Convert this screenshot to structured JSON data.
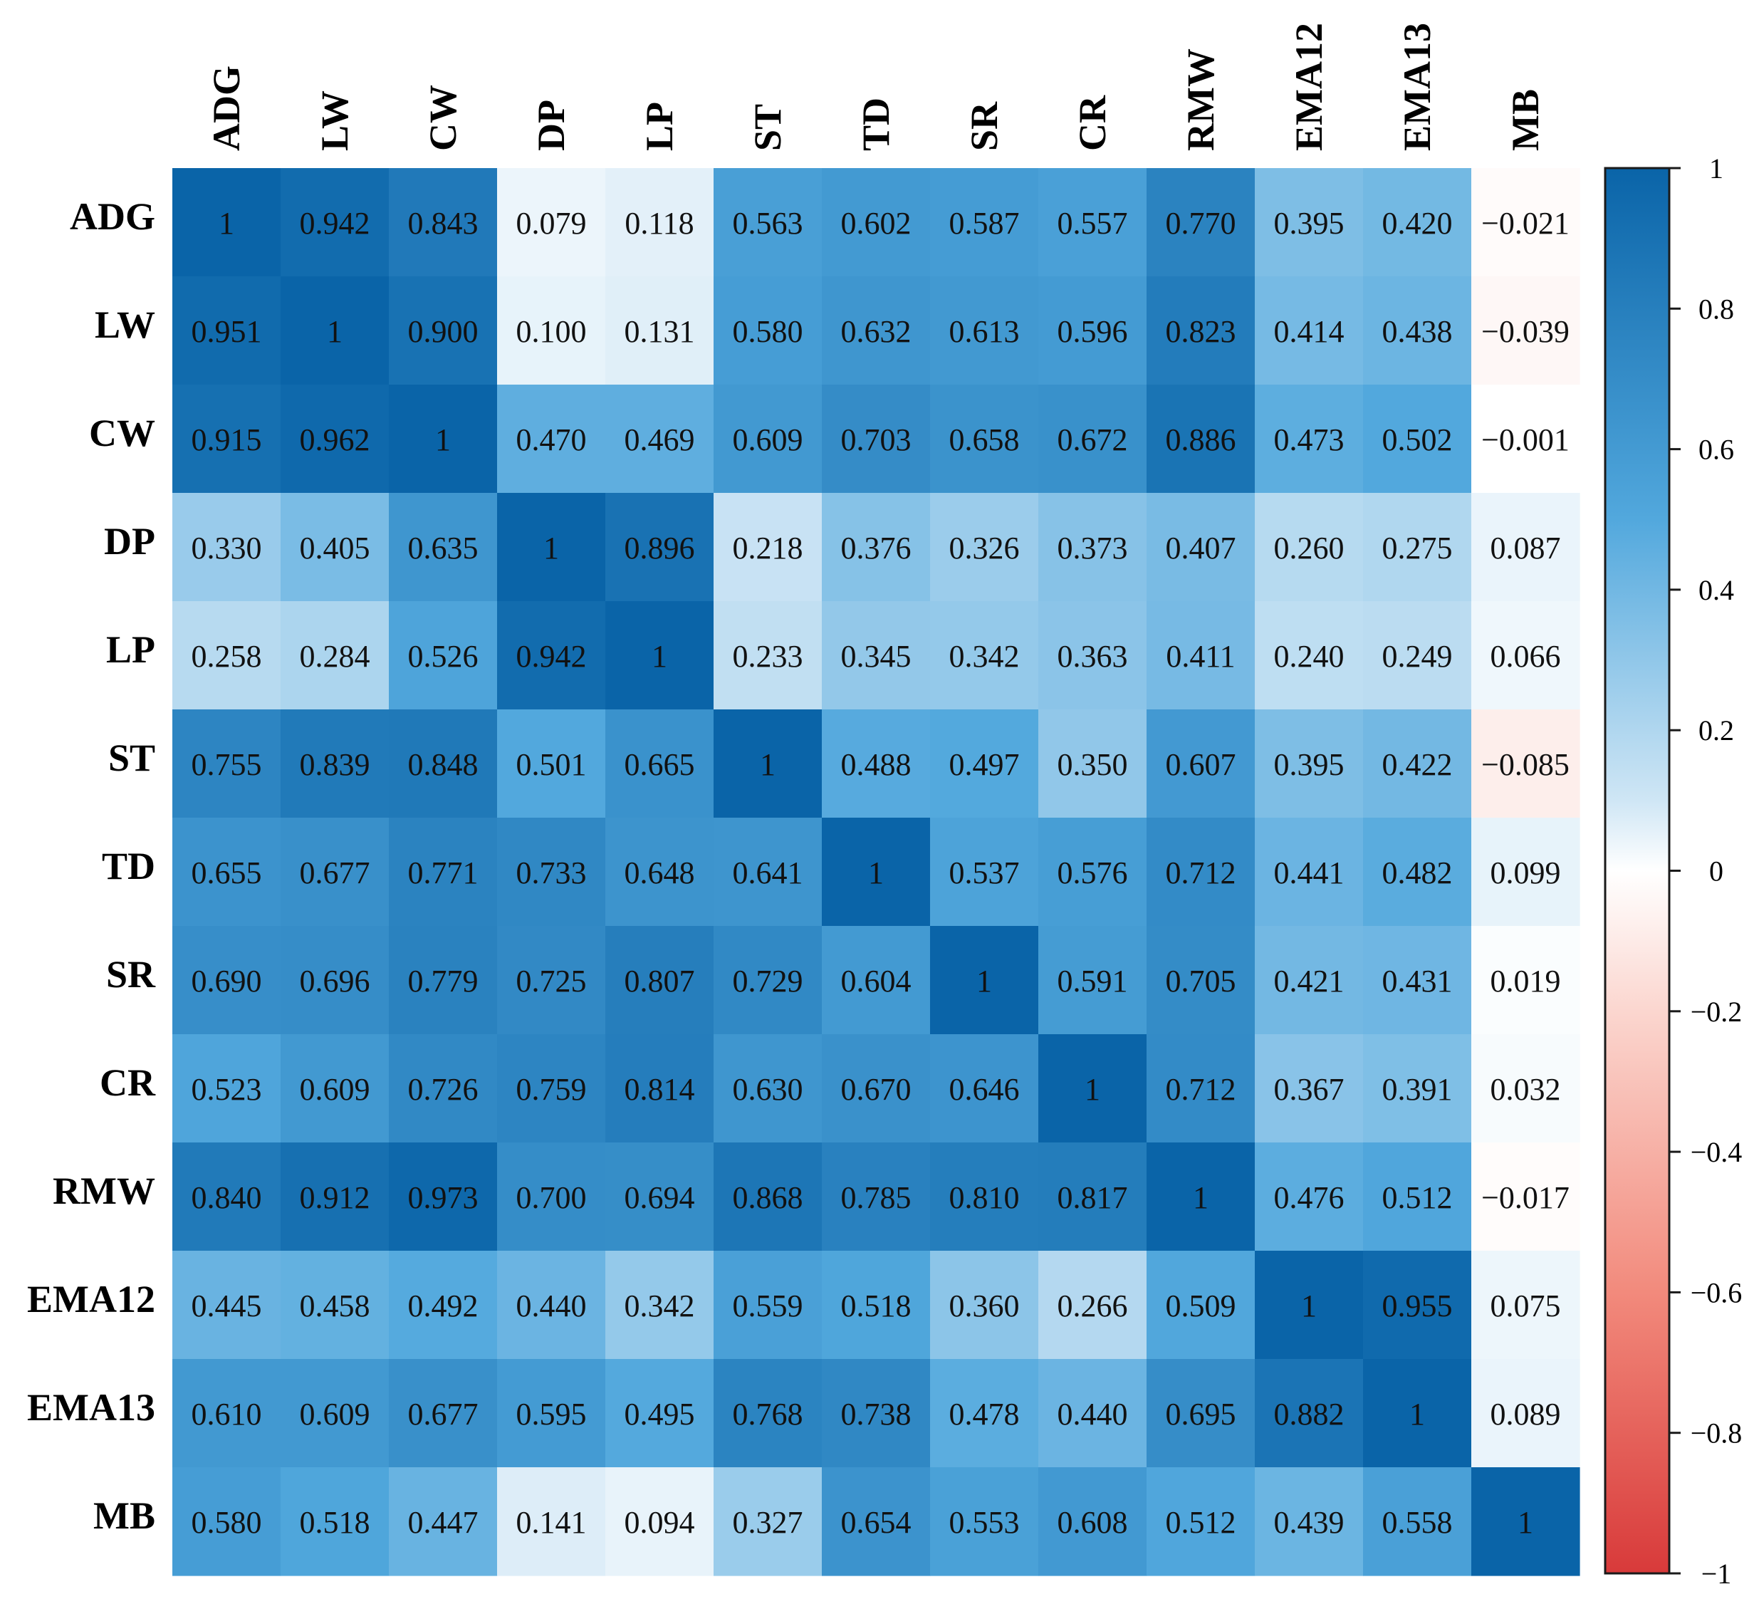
{
  "chart_data": {
    "type": "heatmap",
    "title": "",
    "variables": [
      "ADG",
      "LW",
      "CW",
      "DP",
      "LP",
      "ST",
      "TD",
      "SR",
      "CR",
      "RMW",
      "EMA12",
      "EMA13",
      "MB"
    ],
    "matrix": [
      [
        "1",
        "0.942",
        "0.843",
        "0.079",
        "0.118",
        "0.563",
        "0.602",
        "0.587",
        "0.557",
        "0.770",
        "0.395",
        "0.420",
        "−0.021"
      ],
      [
        "0.951",
        "1",
        "0.900",
        "0.100",
        "0.131",
        "0.580",
        "0.632",
        "0.613",
        "0.596",
        "0.823",
        "0.414",
        "0.438",
        "−0.039"
      ],
      [
        "0.915",
        "0.962",
        "1",
        "0.470",
        "0.469",
        "0.609",
        "0.703",
        "0.658",
        "0.672",
        "0.886",
        "0.473",
        "0.502",
        "−0.001"
      ],
      [
        "0.330",
        "0.405",
        "0.635",
        "1",
        "0.896",
        "0.218",
        "0.376",
        "0.326",
        "0.373",
        "0.407",
        "0.260",
        "0.275",
        "0.087"
      ],
      [
        "0.258",
        "0.284",
        "0.526",
        "0.942",
        "1",
        "0.233",
        "0.345",
        "0.342",
        "0.363",
        "0.411",
        "0.240",
        "0.249",
        "0.066"
      ],
      [
        "0.755",
        "0.839",
        "0.848",
        "0.501",
        "0.665",
        "1",
        "0.488",
        "0.497",
        "0.350",
        "0.607",
        "0.395",
        "0.422",
        "−0.085"
      ],
      [
        "0.655",
        "0.677",
        "0.771",
        "0.733",
        "0.648",
        "0.641",
        "1",
        "0.537",
        "0.576",
        "0.712",
        "0.441",
        "0.482",
        "0.099"
      ],
      [
        "0.690",
        "0.696",
        "0.779",
        "0.725",
        "0.807",
        "0.729",
        "0.604",
        "1",
        "0.591",
        "0.705",
        "0.421",
        "0.431",
        "0.019"
      ],
      [
        "0.523",
        "0.609",
        "0.726",
        "0.759",
        "0.814",
        "0.630",
        "0.670",
        "0.646",
        "1",
        "0.712",
        "0.367",
        "0.391",
        "0.032"
      ],
      [
        "0.840",
        "0.912",
        "0.973",
        "0.700",
        "0.694",
        "0.868",
        "0.785",
        "0.810",
        "0.817",
        "1",
        "0.476",
        "0.512",
        "−0.017"
      ],
      [
        "0.445",
        "0.458",
        "0.492",
        "0.440",
        "0.342",
        "0.559",
        "0.518",
        "0.360",
        "0.266",
        "0.509",
        "1",
        "0.955",
        "0.075"
      ],
      [
        "0.610",
        "0.609",
        "0.677",
        "0.595",
        "0.495",
        "0.768",
        "0.738",
        "0.478",
        "0.440",
        "0.695",
        "0.882",
        "1",
        "0.089"
      ],
      [
        "0.580",
        "0.518",
        "0.447",
        "0.141",
        "0.094",
        "0.327",
        "0.654",
        "0.553",
        "0.608",
        "0.512",
        "0.439",
        "0.558",
        "1"
      ]
    ],
    "colorbar": {
      "range": [
        -1,
        1
      ],
      "ticks": [
        "1",
        "0.8",
        "0.6",
        "0.4",
        "0.2",
        "0",
        "−0.2",
        "−0.4",
        "−0.6",
        "−0.8",
        "−1"
      ],
      "tick_values": [
        1,
        0.8,
        0.6,
        0.4,
        0.2,
        0,
        -0.2,
        -0.4,
        -0.6,
        -0.8,
        -1
      ],
      "colors": {
        "positive_end": "#0a64a8",
        "center": "#ffffff",
        "negative_end": "#d83a3a"
      }
    }
  }
}
